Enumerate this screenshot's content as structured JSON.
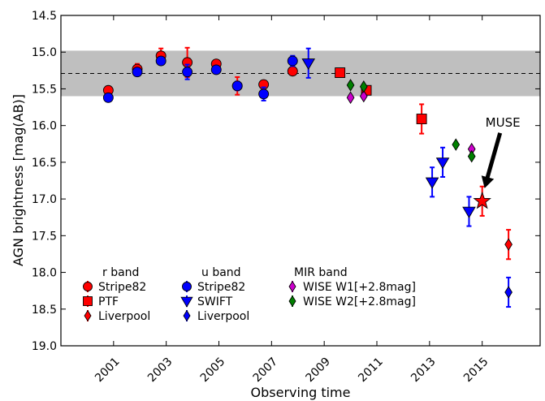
{
  "chart_data": {
    "type": "scatter",
    "xlabel": "Observing time",
    "ylabel": "AGN brightness [mag(AB)]",
    "xlim": [
      1999.0,
      2017.2
    ],
    "ylim": [
      19.0,
      14.5
    ],
    "y_inverted": true,
    "xticks": [
      "2001",
      "2003",
      "2005",
      "2007",
      "2009",
      "2011",
      "2013",
      "2015"
    ],
    "yticks": [
      "14.5",
      "15.0",
      "15.5",
      "16.0",
      "16.5",
      "17.0",
      "17.5",
      "18.0",
      "18.5",
      "19.0"
    ],
    "band": {
      "low": 14.98,
      "high": 15.6,
      "color": "#bfbfbf"
    },
    "reference_line": {
      "y": 15.29,
      "style": "dashed"
    },
    "series": [
      {
        "name": "Stripe82",
        "band": "r band",
        "marker": "circle",
        "color": "#ff0000",
        "points": [
          {
            "x": 2000.8,
            "y": 15.52,
            "err": 0.03
          },
          {
            "x": 2001.9,
            "y": 15.23,
            "err": 0.07
          },
          {
            "x": 2002.8,
            "y": 15.05,
            "err": 0.1
          },
          {
            "x": 2003.8,
            "y": 15.14,
            "err": 0.2
          },
          {
            "x": 2004.9,
            "y": 15.16,
            "err": 0.04
          },
          {
            "x": 2005.7,
            "y": 15.46,
            "err": 0.12
          },
          {
            "x": 2006.7,
            "y": 15.44,
            "err": 0.05
          },
          {
            "x": 2007.8,
            "y": 15.26,
            "err": 0.04
          }
        ]
      },
      {
        "name": "PTF",
        "band": "r band",
        "marker": "square",
        "color": "#ff0000",
        "points": [
          {
            "x": 2009.6,
            "y": 15.28,
            "err": 0.03
          },
          {
            "x": 2010.6,
            "y": 15.52,
            "err": 0.05
          },
          {
            "x": 2012.7,
            "y": 15.91,
            "err": 0.2
          }
        ]
      },
      {
        "name": "Liverpool",
        "band": "r band",
        "marker": "star",
        "color": "#ff0000",
        "points": [
          {
            "x": 2015.0,
            "y": 17.03,
            "err": 0.2
          }
        ]
      },
      {
        "name": "Liverpool",
        "band": "r band",
        "marker": "diamond",
        "color": "#ff0000",
        "points": [
          {
            "x": 2016.0,
            "y": 17.62,
            "err": 0.2
          }
        ]
      },
      {
        "name": "Stripe82",
        "band": "u band",
        "marker": "circle",
        "color": "#0000ff",
        "points": [
          {
            "x": 2000.8,
            "y": 15.62,
            "err": 0.03
          },
          {
            "x": 2001.9,
            "y": 15.27,
            "err": 0.04
          },
          {
            "x": 2002.8,
            "y": 15.12,
            "err": 0.04
          },
          {
            "x": 2003.8,
            "y": 15.27,
            "err": 0.1
          },
          {
            "x": 2004.9,
            "y": 15.24,
            "err": 0.03
          },
          {
            "x": 2005.7,
            "y": 15.46,
            "err": 0.06
          },
          {
            "x": 2006.7,
            "y": 15.57,
            "err": 0.09
          },
          {
            "x": 2007.8,
            "y": 15.12,
            "err": 0.07
          }
        ]
      },
      {
        "name": "SWIFT",
        "band": "u band",
        "marker": "triangle-down",
        "color": "#0000ff",
        "points": [
          {
            "x": 2008.4,
            "y": 15.15,
            "err": 0.2
          },
          {
            "x": 2013.1,
            "y": 16.77,
            "err": 0.2
          },
          {
            "x": 2013.5,
            "y": 16.5,
            "err": 0.2
          },
          {
            "x": 2014.5,
            "y": 17.17,
            "err": 0.2
          }
        ]
      },
      {
        "name": "Liverpool",
        "band": "u band",
        "marker": "diamond",
        "color": "#0000ff",
        "points": [
          {
            "x": 2016.0,
            "y": 18.27,
            "err": 0.2
          }
        ]
      },
      {
        "name": "WISE W1[+2.8mag]",
        "band": "MIR band",
        "marker": "diamond",
        "color": "#cc00cc",
        "points": [
          {
            "x": 2010.0,
            "y": 15.62,
            "err": 0.0
          },
          {
            "x": 2010.5,
            "y": 15.6,
            "err": 0.0
          },
          {
            "x": 2014.6,
            "y": 16.32,
            "err": 0.0
          }
        ]
      },
      {
        "name": "WISE W2[+2.8mag]",
        "band": "MIR band",
        "marker": "diamond",
        "color": "#008000",
        "points": [
          {
            "x": 2010.0,
            "y": 15.45,
            "err": 0.0
          },
          {
            "x": 2010.5,
            "y": 15.47,
            "err": 0.0
          },
          {
            "x": 2014.0,
            "y": 16.26,
            "err": 0.0
          },
          {
            "x": 2014.6,
            "y": 16.42,
            "err": 0.0
          }
        ]
      }
    ],
    "annotation": {
      "text": "MUSE",
      "target_x": 2015.0,
      "target_y": 17.03
    },
    "legend": {
      "placement": "lower-left",
      "columns": [
        {
          "header": "r band",
          "entries": [
            {
              "label": "Stripe82",
              "marker": "circle",
              "color": "#ff0000"
            },
            {
              "label": "PTF",
              "marker": "square",
              "color": "#ff0000"
            },
            {
              "label": "Liverpool",
              "marker": "diamond",
              "color": "#ff0000"
            }
          ]
        },
        {
          "header": "u band",
          "entries": [
            {
              "label": "Stripe82",
              "marker": "circle",
              "color": "#0000ff"
            },
            {
              "label": "SWIFT",
              "marker": "triangle-down",
              "color": "#0000ff"
            },
            {
              "label": "Liverpool",
              "marker": "diamond",
              "color": "#0000ff"
            }
          ]
        },
        {
          "header": "MIR band",
          "entries": [
            {
              "label": "WISE W1[+2.8mag]",
              "marker": "diamond",
              "color": "#cc00cc"
            },
            {
              "label": "WISE W2[+2.8mag]",
              "marker": "diamond",
              "color": "#008000"
            }
          ]
        }
      ]
    }
  }
}
